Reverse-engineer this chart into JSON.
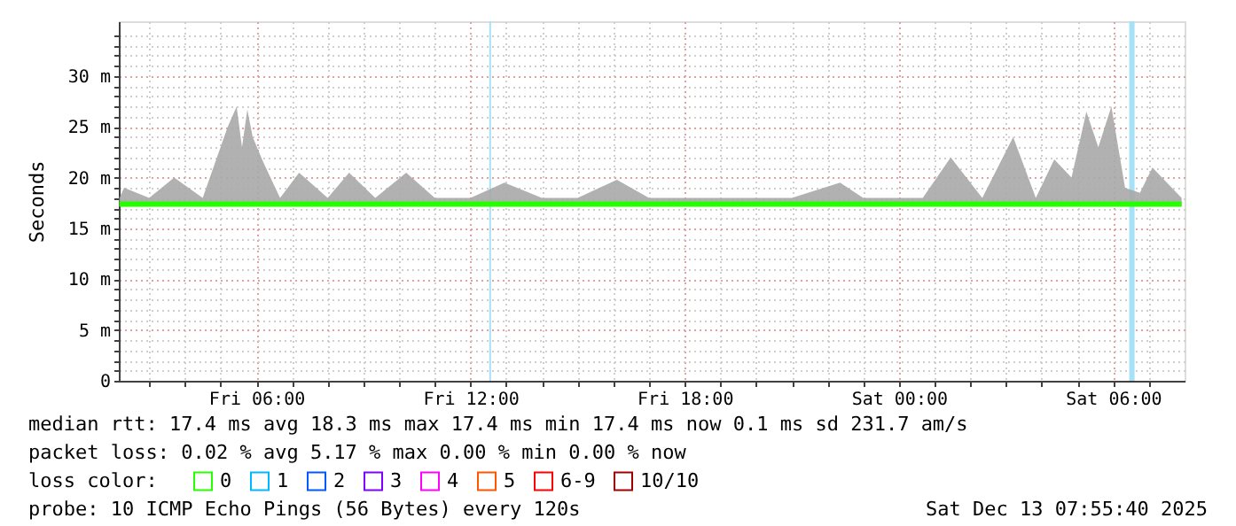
{
  "chart_data": {
    "type": "line",
    "ylabel": "Seconds",
    "legend_title": "loss color:",
    "legend": "bottom left",
    "grid": true,
    "xlim": [
      "2025-12-12T02:09",
      "2025-12-13T08:00"
    ],
    "ylim": [
      0,
      35.4
    ],
    "xticks": [
      {
        "value": "2025-12-12T03:00",
        "label": null
      },
      {
        "value": "2025-12-12T04:00",
        "label": null
      },
      {
        "value": "2025-12-12T05:00",
        "label": null
      },
      {
        "value": "2025-12-12T06:00",
        "label": "Fri 06:00"
      },
      {
        "value": "2025-12-12T07:00",
        "label": null
      },
      {
        "value": "2025-12-12T08:00",
        "label": null
      },
      {
        "value": "2025-12-12T09:00",
        "label": null
      },
      {
        "value": "2025-12-12T10:00",
        "label": null
      },
      {
        "value": "2025-12-12T11:00",
        "label": null
      },
      {
        "value": "2025-12-12T12:00",
        "label": "Fri 12:00"
      },
      {
        "value": "2025-12-12T13:00",
        "label": null
      },
      {
        "value": "2025-12-12T14:00",
        "label": null
      },
      {
        "value": "2025-12-12T15:00",
        "label": null
      },
      {
        "value": "2025-12-12T16:00",
        "label": null
      },
      {
        "value": "2025-12-12T17:00",
        "label": null
      },
      {
        "value": "2025-12-12T18:00",
        "label": "Fri 18:00"
      },
      {
        "value": "2025-12-12T19:00",
        "label": null
      },
      {
        "value": "2025-12-12T20:00",
        "label": null
      },
      {
        "value": "2025-12-12T21:00",
        "label": null
      },
      {
        "value": "2025-12-12T22:00",
        "label": null
      },
      {
        "value": "2025-12-12T23:00",
        "label": null
      },
      {
        "value": "2025-12-13T00:00",
        "label": "Sat 00:00"
      },
      {
        "value": "2025-12-13T01:00",
        "label": null
      },
      {
        "value": "2025-12-13T02:00",
        "label": null
      },
      {
        "value": "2025-12-13T03:00",
        "label": null
      },
      {
        "value": "2025-12-13T04:00",
        "label": null
      },
      {
        "value": "2025-12-13T05:00",
        "label": null
      },
      {
        "value": "2025-12-13T06:00",
        "label": "Sat 06:00"
      },
      {
        "value": "2025-12-13T07:00",
        "label": null
      }
    ],
    "yticks": [
      {
        "value": 0,
        "label": "0"
      },
      {
        "value": 1,
        "label": null
      },
      {
        "value": 2,
        "label": null
      },
      {
        "value": 3,
        "label": null
      },
      {
        "value": 4,
        "label": null
      },
      {
        "value": 5,
        "label": "5 m"
      },
      {
        "value": 6,
        "label": null
      },
      {
        "value": 7,
        "label": null
      },
      {
        "value": 8,
        "label": null
      },
      {
        "value": 9,
        "label": null
      },
      {
        "value": 10,
        "label": "10 m"
      },
      {
        "value": 11,
        "label": null
      },
      {
        "value": 12,
        "label": null
      },
      {
        "value": 13,
        "label": null
      },
      {
        "value": 14,
        "label": null
      },
      {
        "value": 15,
        "label": "15 m"
      },
      {
        "value": 16,
        "label": null
      },
      {
        "value": 17,
        "label": null
      },
      {
        "value": 18,
        "label": null
      },
      {
        "value": 19,
        "label": null
      },
      {
        "value": 20,
        "label": "20 m"
      },
      {
        "value": 21,
        "label": null
      },
      {
        "value": 22,
        "label": null
      },
      {
        "value": 23,
        "label": null
      },
      {
        "value": 24,
        "label": null
      },
      {
        "value": 25,
        "label": "25 m"
      },
      {
        "value": 26,
        "label": null
      },
      {
        "value": 27,
        "label": null
      },
      {
        "value": 28,
        "label": null
      },
      {
        "value": 29,
        "label": null
      },
      {
        "value": 30,
        "label": "30 m"
      },
      {
        "value": 31,
        "label": null
      },
      {
        "value": 32,
        "label": null
      },
      {
        "value": 33,
        "label": null
      },
      {
        "value": 34,
        "label": null
      }
    ],
    "series": [
      {
        "name": "0",
        "color": "#26ff00",
        "x": [
          "2025-12-12T02:10",
          "2025-12-12T02:18",
          "2025-12-12T03:00",
          "2025-12-12T03:42",
          "2025-12-12T04:30",
          "2025-12-12T05:12",
          "2025-12-12T05:27",
          "2025-12-12T05:36",
          "2025-12-12T05:45",
          "2025-12-12T05:54",
          "2025-12-12T06:12",
          "2025-12-12T06:40",
          "2025-12-12T07:12",
          "2025-12-12T08:00",
          "2025-12-12T08:36",
          "2025-12-12T09:20",
          "2025-12-12T10:12",
          "2025-12-12T11:00",
          "2025-12-12T12:00",
          "2025-12-12T12:57",
          "2025-12-12T14:00",
          "2025-12-12T15:00",
          "2025-12-12T16:06",
          "2025-12-12T17:00",
          "2025-12-12T18:00",
          "2025-12-12T19:00",
          "2025-12-12T20:00",
          "2025-12-12T21:00",
          "2025-12-12T22:21",
          "2025-12-12T23:00",
          "2025-12-13T00:00",
          "2025-12-13T00:40",
          "2025-12-13T01:27",
          "2025-12-13T02:20",
          "2025-12-13T03:12",
          "2025-12-13T03:50",
          "2025-12-13T04:21",
          "2025-12-13T04:50",
          "2025-12-13T05:15",
          "2025-12-13T05:35",
          "2025-12-13T05:57",
          "2025-12-13T06:20",
          "2025-12-13T06:45",
          "2025-12-13T07:06",
          "2025-12-13T07:55"
        ],
        "values": [
          17.4,
          17.4,
          17.4,
          17.4,
          17.4,
          17.4,
          17.4,
          17.4,
          17.4,
          17.4,
          17.4,
          17.4,
          17.4,
          17.4,
          17.4,
          17.4,
          17.4,
          17.4,
          17.4,
          17.4,
          17.4,
          17.4,
          17.4,
          17.4,
          17.4,
          17.4,
          17.4,
          17.4,
          17.4,
          17.4,
          17.4,
          17.4,
          17.4,
          17.4,
          17.4,
          17.4,
          17.4,
          17.4,
          17.4,
          17.4,
          17.4,
          17.4,
          17.4,
          17.4,
          17.4
        ],
        "lower": [
          17.2,
          17.2,
          17.2,
          17.2,
          17.2,
          17.2,
          17.2,
          17.2,
          17.2,
          17.2,
          17.2,
          17.2,
          17.2,
          17.2,
          17.2,
          17.2,
          17.2,
          17.2,
          17.2,
          17.2,
          17.2,
          17.2,
          17.2,
          17.2,
          17.2,
          17.2,
          17.2,
          17.2,
          17.2,
          17.2,
          17.2,
          17.2,
          17.2,
          17.2,
          17.2,
          17.2,
          17.2,
          17.2,
          17.2,
          17.2,
          17.2,
          17.2,
          17.2,
          17.2,
          17.2
        ],
        "upper": [
          18,
          19,
          18,
          20,
          18,
          25,
          27,
          23,
          26.7,
          24,
          21.5,
          18,
          20.5,
          18,
          20.5,
          18,
          20.5,
          18,
          18,
          19.5,
          18,
          18,
          19.8,
          18,
          18,
          18,
          18,
          18,
          19.5,
          18,
          18,
          18,
          22,
          18,
          24,
          18,
          21.8,
          20,
          26.5,
          23,
          27,
          19,
          18.5,
          21,
          18
        ]
      },
      {
        "name": "1",
        "color": "#00b8ff"
      },
      {
        "name": "2",
        "color": "#0059ff"
      },
      {
        "name": "3",
        "color": "#7e00ff"
      },
      {
        "name": "4",
        "color": "#ff00ff"
      },
      {
        "name": "5",
        "color": "#ff5500"
      },
      {
        "name": "6-9",
        "color": "#ff0000"
      },
      {
        "name": "10/10",
        "color": "#a00000"
      }
    ],
    "ref_lines": [
      {
        "axis": "x",
        "value": "2025-12-12T12:33",
        "color": "#a6e1f5"
      }
    ],
    "bands": [
      {
        "axis": "x",
        "from": "2025-12-13T06:27",
        "to": "2025-12-13T06:36",
        "color": "#a6e1f5"
      }
    ],
    "annotations": [
      "median rtt:  17.4 ms avg  18.3 ms max  17.4 ms min  17.4 ms now  0.1 ms sd  231.7   am/s",
      "packet loss: 0.02 % avg  5.17 % max  0.00 % min  0.00 % now",
      "probe:       10 ICMP Echo Pings (56 Bytes) every 120s",
      "Sat Dec 13 07:55:40 2025"
    ]
  }
}
